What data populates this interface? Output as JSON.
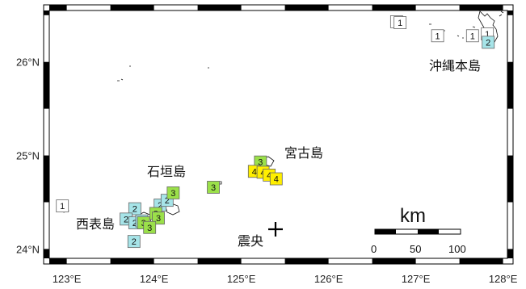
{
  "map": {
    "lon_range": [
      122.8,
      128.05
    ],
    "lat_range": [
      23.9,
      26.55
    ],
    "frame_ticks": {
      "lon": [
        123,
        123.5,
        124,
        124.5,
        125,
        125.5,
        126,
        126.5,
        127,
        127.5,
        128
      ],
      "lat": [
        24,
        24.5,
        25,
        25.5,
        26,
        26.5
      ]
    },
    "lon_labels": [
      {
        "value": 123,
        "text": "123°E"
      },
      {
        "value": 124,
        "text": "124°E"
      },
      {
        "value": 125,
        "text": "125°E"
      },
      {
        "value": 126,
        "text": "126°E"
      },
      {
        "value": 127,
        "text": "127°E"
      },
      {
        "value": 128,
        "text": "128°E"
      }
    ],
    "lat_labels": [
      {
        "value": 24,
        "text": "24°N"
      },
      {
        "value": 25,
        "text": "25°N"
      },
      {
        "value": 26,
        "text": "26°N"
      }
    ],
    "place_labels": [
      {
        "text": "沖縄本島",
        "lon": 127.65,
        "lat": 26.06
      },
      {
        "text": "宮古島",
        "lon": 125.55,
        "lat": 24.98
      },
      {
        "text": "石垣島",
        "lon": 123.9,
        "lat": 24.72
      },
      {
        "text": "西表島",
        "lon": 123.22,
        "lat": 24.15
      }
    ],
    "epicenter": {
      "label": "震央",
      "lon": 125.3,
      "lat": 24.08
    },
    "intensity_colors": {
      "1": "#ffffff",
      "2": "#a6e4e8",
      "3": "#9be04a",
      "4": "#ffef00"
    },
    "intensity_markers": [
      {
        "value": "1",
        "lon": 122.95,
        "lat": 24.46
      },
      {
        "value": "1",
        "lon": 126.78,
        "lat": 26.43
      },
      {
        "value": "1",
        "lon": 126.82,
        "lat": 26.42
      },
      {
        "value": "1",
        "lon": 127.25,
        "lat": 26.28
      },
      {
        "value": "1",
        "lon": 127.65,
        "lat": 26.28
      },
      {
        "value": "1",
        "lon": 127.82,
        "lat": 26.3
      },
      {
        "value": "2",
        "lon": 127.83,
        "lat": 26.21
      },
      {
        "value": "2",
        "lon": 123.78,
        "lat": 24.43
      },
      {
        "value": "2",
        "lon": 123.68,
        "lat": 24.32
      },
      {
        "value": "2",
        "lon": 123.78,
        "lat": 24.28
      },
      {
        "value": "2",
        "lon": 123.86,
        "lat": 24.3
      },
      {
        "value": "2",
        "lon": 124.07,
        "lat": 24.47
      },
      {
        "value": "2",
        "lon": 124.15,
        "lat": 24.52
      },
      {
        "value": "2",
        "lon": 123.77,
        "lat": 24.08
      },
      {
        "value": "3",
        "lon": 124.22,
        "lat": 24.6
      },
      {
        "value": "3",
        "lon": 124.02,
        "lat": 24.38
      },
      {
        "value": "3",
        "lon": 124.05,
        "lat": 24.33
      },
      {
        "value": "3",
        "lon": 123.88,
        "lat": 24.28
      },
      {
        "value": "3",
        "lon": 123.95,
        "lat": 24.23
      },
      {
        "value": "3",
        "lon": 124.68,
        "lat": 24.66
      },
      {
        "value": "3",
        "lon": 125.22,
        "lat": 24.93
      },
      {
        "value": "4",
        "lon": 125.15,
        "lat": 24.83
      },
      {
        "value": "4",
        "lon": 125.25,
        "lat": 24.82
      },
      {
        "value": "4",
        "lon": 125.32,
        "lat": 24.79
      },
      {
        "value": "4",
        "lon": 125.4,
        "lat": 24.75
      }
    ],
    "scale_bar": {
      "title": "km",
      "ticks": [
        "0",
        "50",
        "100"
      ]
    }
  }
}
